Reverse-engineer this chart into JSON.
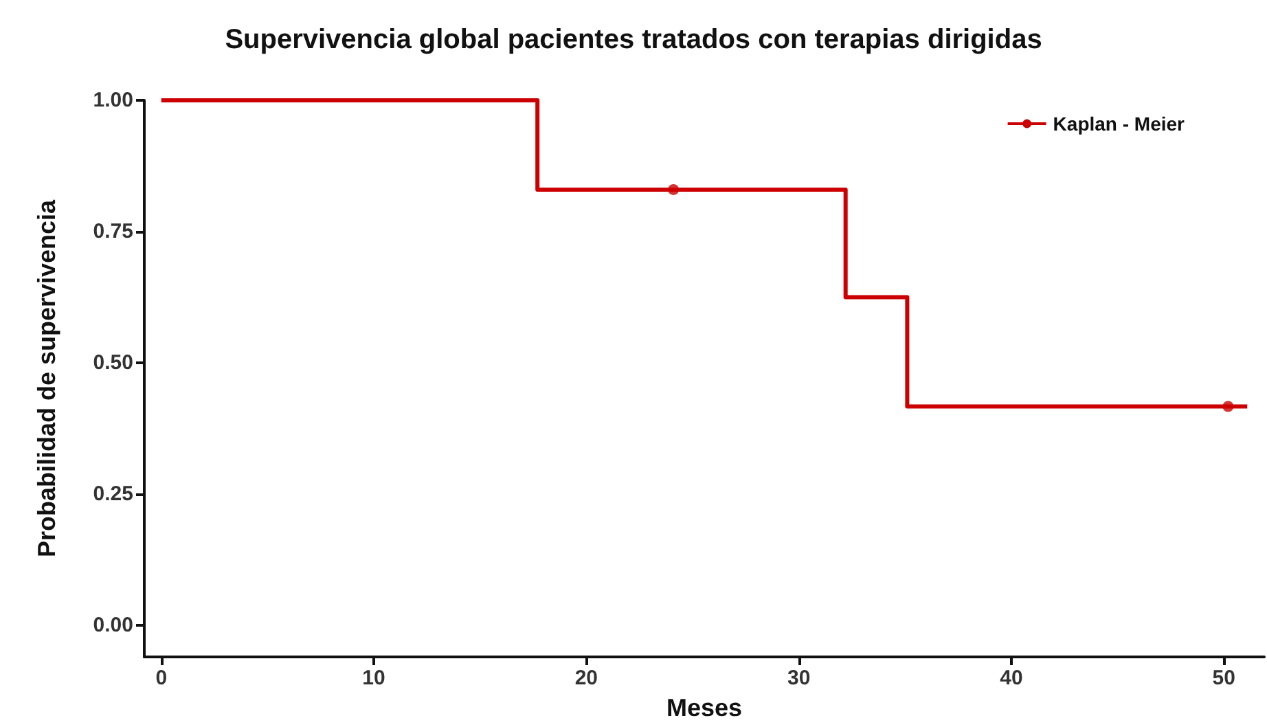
{
  "chart_data": {
    "type": "step",
    "title": "Supervivencia global pacientes tratados con terapias dirigidas",
    "xlabel": "Meses",
    "ylabel": "Probabilidad de supervivencia",
    "series": [
      {
        "name": "Kaplan - Meier",
        "color": "#cc0000",
        "x": [
          0,
          17.7,
          24.1,
          32.2,
          35.1,
          50.2,
          51.1
        ],
        "values": [
          1,
          0.83,
          0.83,
          0.625,
          0.417,
          0.417,
          0.417
        ],
        "marker": "none"
      },
      {
        "type": "scatter",
        "color": "#cc0000",
        "x": [
          24.1,
          50.2
        ],
        "values": [
          0.83,
          0.417
        ],
        "marker": "circle"
      }
    ],
    "xlim": [
      -0.8,
      51.9
    ],
    "xticks": [
      0,
      10,
      20,
      30,
      40,
      50
    ],
    "ylim": [
      -0.06,
      1
    ],
    "yticks": [
      {
        "value": 0,
        "label": "0.00"
      },
      {
        "value": 0.25,
        "label": "0.25"
      },
      {
        "value": 0.5,
        "label": "0.50"
      },
      {
        "value": 0.75,
        "label": "0.75"
      },
      {
        "value": 1,
        "label": "1.00"
      }
    ],
    "grid": false,
    "legend": "top right",
    "line_style": "solid"
  }
}
